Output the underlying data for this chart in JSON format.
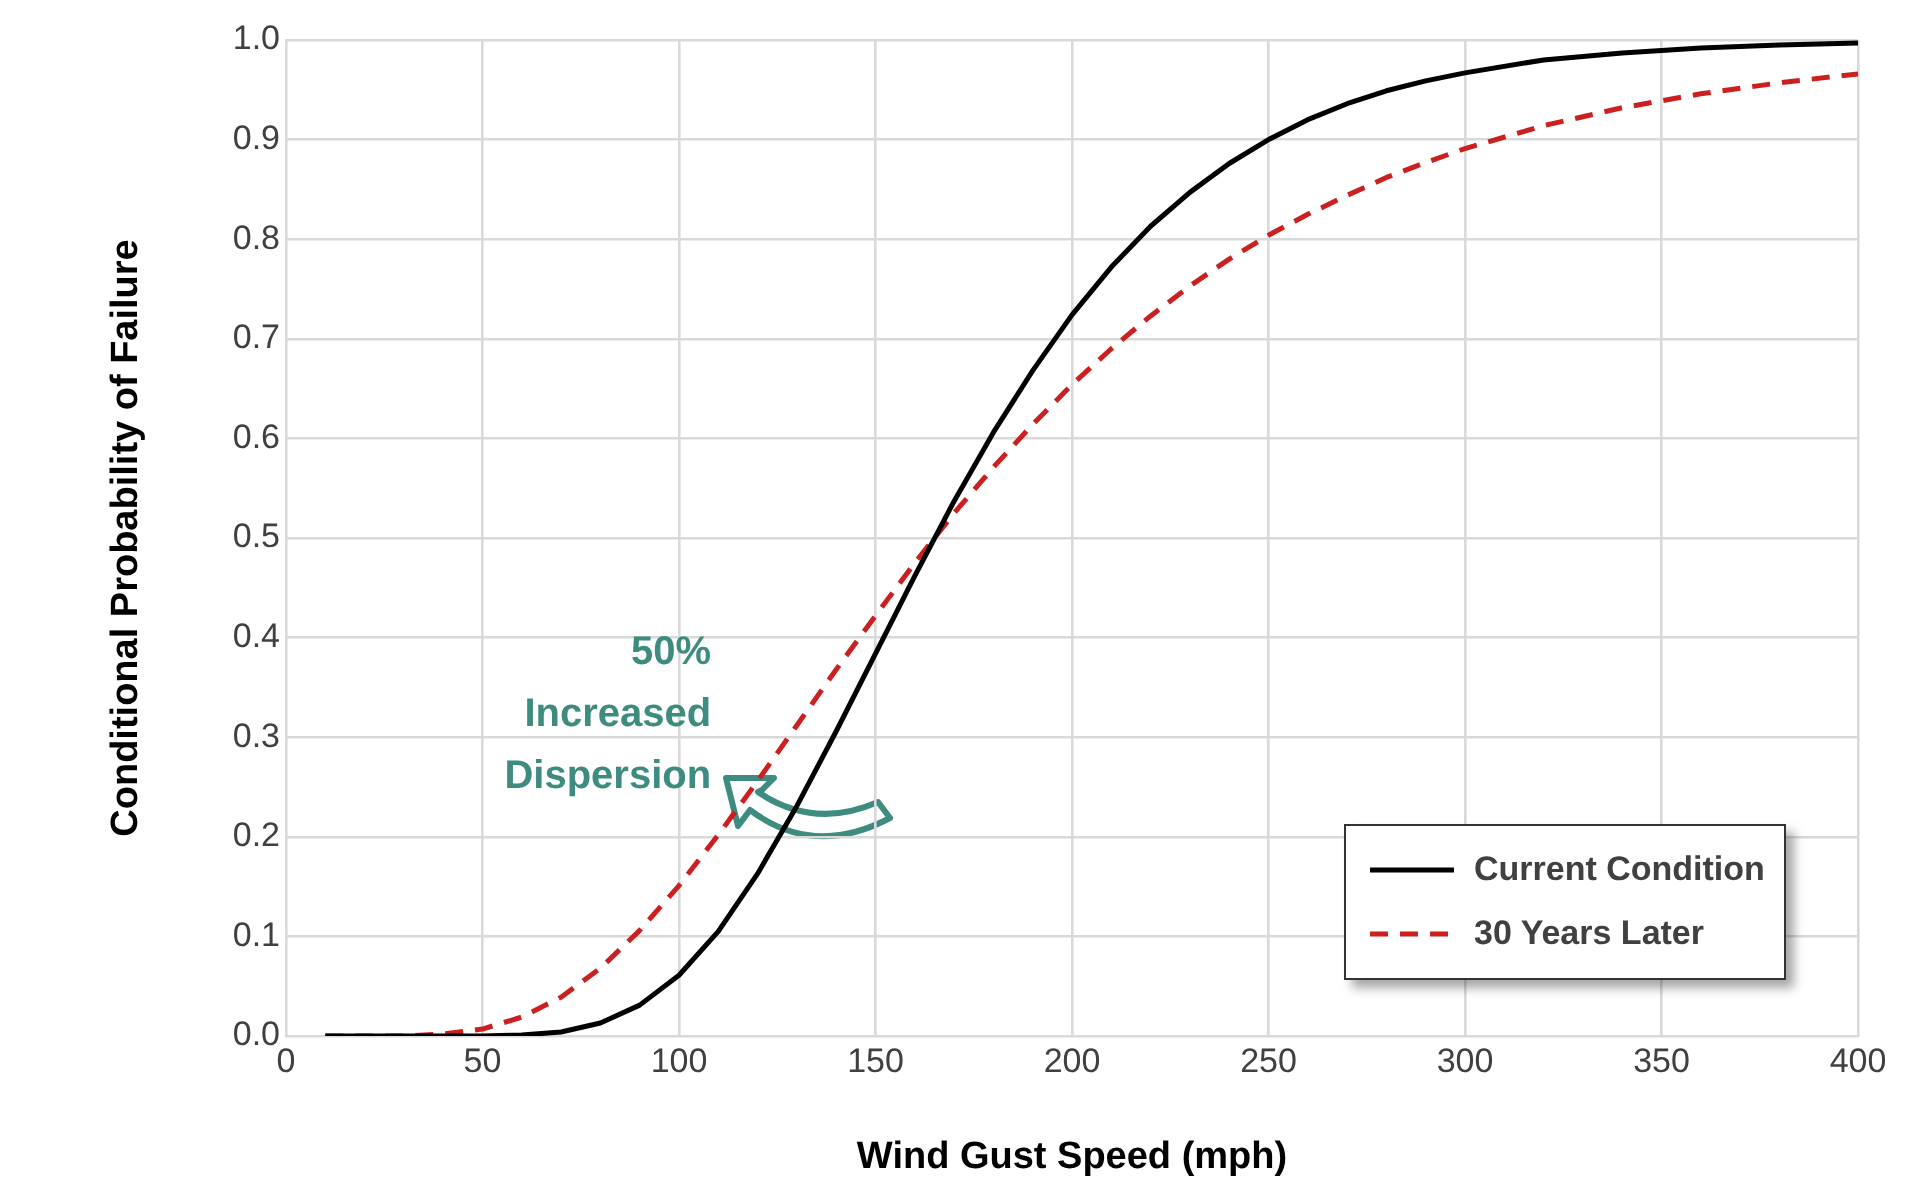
{
  "chart_data": {
    "type": "line",
    "xlabel": "Wind Gust Speed (mph)",
    "ylabel": "Conditional Probability of Failure",
    "annotations": [
      "50%\nIncreased\nDispersion"
    ],
    "x": [
      10,
      20,
      30,
      40,
      50,
      60,
      70,
      80,
      90,
      100,
      110,
      120,
      130,
      140,
      150,
      160,
      170,
      180,
      190,
      200,
      210,
      220,
      230,
      240,
      250,
      260,
      270,
      280,
      290,
      300,
      320,
      340,
      360,
      380,
      400
    ],
    "series": [
      {
        "name": "Current Condition",
        "color": "#000000",
        "line_style": "solid",
        "values": [
          0,
          0,
          0,
          0,
          0,
          0.001,
          0.004,
          0.013,
          0.031,
          0.061,
          0.105,
          0.163,
          0.231,
          0.306,
          0.384,
          0.462,
          0.537,
          0.606,
          0.668,
          0.724,
          0.772,
          0.813,
          0.847,
          0.876,
          0.9,
          0.92,
          0.936,
          0.949,
          0.959,
          0.967,
          0.98,
          0.987,
          0.992,
          0.995,
          0.997
        ]
      },
      {
        "name": "30 Years Later",
        "color": "#cc1f1f",
        "line_style": "dashed",
        "values": [
          0,
          0,
          0,
          0.002,
          0.007,
          0.019,
          0.039,
          0.068,
          0.106,
          0.151,
          0.202,
          0.256,
          0.312,
          0.368,
          0.422,
          0.475,
          0.525,
          0.571,
          0.614,
          0.654,
          0.69,
          0.723,
          0.753,
          0.78,
          0.804,
          0.825,
          0.844,
          0.862,
          0.877,
          0.891,
          0.914,
          0.932,
          0.946,
          0.957,
          0.966
        ]
      }
    ],
    "xlim": [
      0,
      400
    ],
    "xticks": [
      0,
      50,
      100,
      150,
      200,
      250,
      300,
      350,
      400
    ],
    "ylim": [
      0,
      1
    ],
    "yticks": [
      {
        "value": 0,
        "label": "0.0"
      },
      0.1,
      0.2,
      0.3,
      0.4,
      0.5,
      0.6,
      0.7,
      0.8,
      0.9,
      {
        "value": 1,
        "label": "1.0"
      }
    ],
    "grid": true,
    "legend": "bottom right",
    "marker": "none"
  }
}
